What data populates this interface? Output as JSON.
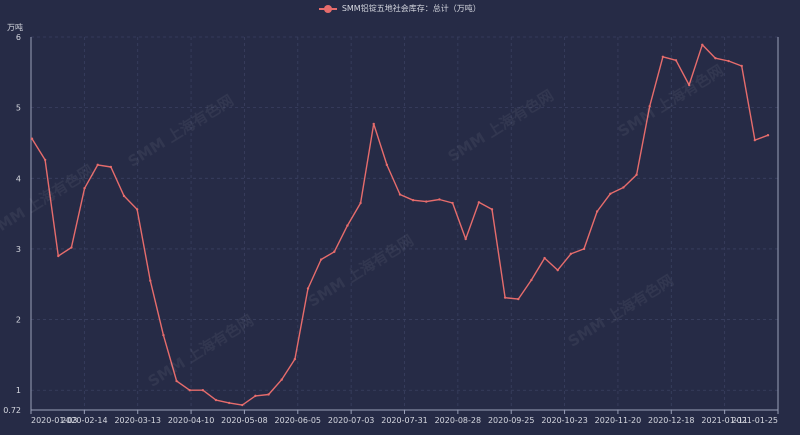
{
  "legend": {
    "label": "SMM铝锭五地社会库存：总计（万吨）"
  },
  "unit_label": "万吨",
  "watermark": "SMM 上海有色网",
  "colors": {
    "background": "#262b46",
    "line": "#e66c6c",
    "grid": "#3a4060",
    "axis": "#9aa0b8",
    "text": "#d6d8e0"
  },
  "chart_data": {
    "type": "line",
    "title": "",
    "xlabel": "",
    "ylabel": "万吨",
    "ylim": [
      0.72,
      6
    ],
    "yticks": [
      0.72,
      1,
      2,
      3,
      4,
      5,
      6
    ],
    "xticks": [
      "2020-01-03",
      "2020-02-14",
      "2020-03-13",
      "2020-04-10",
      "2020-05-08",
      "2020-06-05",
      "2020-07-03",
      "2020-07-31",
      "2020-08-28",
      "2020-09-25",
      "2020-10-23",
      "2020-11-20",
      "2020-12-18",
      "2021-01-11",
      "2021-01-25"
    ],
    "grid": true,
    "legend_position": "top-center",
    "series": [
      {
        "name": "SMM铝锭五地社会库存：总计（万吨）",
        "values": [
          4.56,
          4.26,
          2.9,
          3.02,
          3.86,
          4.19,
          4.16,
          3.75,
          3.56,
          2.55,
          1.78,
          1.13,
          1.0,
          1.0,
          0.86,
          0.82,
          0.79,
          0.92,
          0.94,
          1.15,
          1.44,
          2.44,
          2.85,
          2.96,
          3.33,
          3.65,
          4.77,
          4.19,
          3.77,
          3.69,
          3.67,
          3.7,
          3.65,
          3.14,
          3.66,
          3.56,
          2.31,
          2.29,
          2.56,
          2.87,
          2.7,
          2.93,
          3.0,
          3.53,
          3.78,
          3.87,
          4.05,
          5.02,
          5.72,
          5.67,
          5.32,
          5.89,
          5.7,
          5.66,
          5.59,
          4.54,
          4.61
        ]
      }
    ]
  }
}
